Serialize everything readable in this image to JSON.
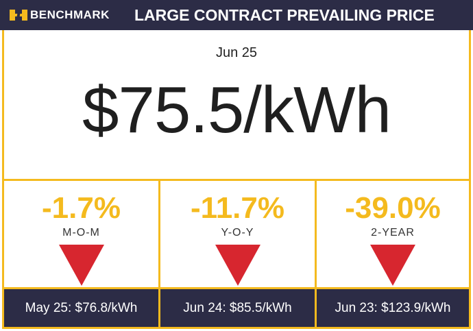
{
  "header": {
    "brand": "BENCHMARK",
    "title": "LARGE CONTRACT PREVAILING PRICE"
  },
  "date": "Jun 25",
  "price": "$75.5/kWh",
  "metrics": [
    {
      "change": "-1.7%",
      "label": "M-O-M",
      "previous": "May 25: $76.8/kWh"
    },
    {
      "change": "-11.7%",
      "label": "Y-O-Y",
      "previous": "Jun 24: $85.5/kWh"
    },
    {
      "change": "-39.0%",
      "label": "2-YEAR",
      "previous": "Jun 23: $123.9/kWh"
    }
  ]
}
